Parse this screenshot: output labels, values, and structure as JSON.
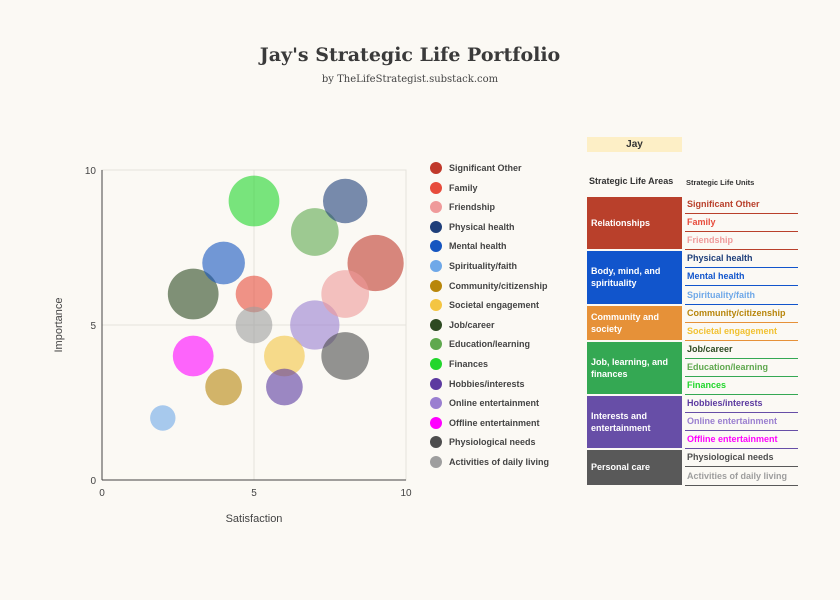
{
  "title": "Jay's Strategic Life Portfolio",
  "subtitle": "by TheLifeStrategist.substack.com",
  "chart_data": {
    "type": "scatter",
    "xlabel": "Satisfaction",
    "ylabel": "Importance",
    "xlim": [
      0,
      10
    ],
    "ylim": [
      0,
      10
    ],
    "xticks": [
      "0",
      "5",
      "10"
    ],
    "yticks": [
      "0",
      "5",
      "10"
    ],
    "grid": true,
    "legend_position": "right",
    "series": [
      {
        "name": "Significant Other",
        "color": "#c0392b",
        "x": 9,
        "y": 7,
        "size": 9
      },
      {
        "name": "Family",
        "color": "#e74c3c",
        "x": 5,
        "y": 6,
        "size": 3
      },
      {
        "name": "Friendship",
        "color": "#ef9a9a",
        "x": 8,
        "y": 6,
        "size": 6
      },
      {
        "name": "Physical health",
        "color": "#1f3f7a",
        "x": 8,
        "y": 9,
        "size": 5
      },
      {
        "name": "Mental health",
        "color": "#1555c0",
        "x": 4,
        "y": 7,
        "size": 4.5
      },
      {
        "name": "Spirituality/faith",
        "color": "#6fa8e8",
        "x": 2,
        "y": 2,
        "size": 1
      },
      {
        "name": "Community/citizenship",
        "color": "#b8860b",
        "x": 4,
        "y": 3,
        "size": 3
      },
      {
        "name": "Societal engagement",
        "color": "#f4c542",
        "x": 6,
        "y": 4,
        "size": 4
      },
      {
        "name": "Job/career",
        "color": "#2d4a22",
        "x": 3,
        "y": 6,
        "size": 7
      },
      {
        "name": "Education/learning",
        "color": "#5fa84e",
        "x": 7,
        "y": 8,
        "size": 6
      },
      {
        "name": "Finances",
        "color": "#22d62c",
        "x": 5,
        "y": 9,
        "size": 7
      },
      {
        "name": "Hobbies/interests",
        "color": "#5c3aa0",
        "x": 6,
        "y": 3,
        "size": 3
      },
      {
        "name": "Online entertainment",
        "color": "#9a7fd0",
        "x": 7,
        "y": 5,
        "size": 6.5
      },
      {
        "name": "Offline entertainment",
        "color": "#ff00ff",
        "x": 3,
        "y": 4,
        "size": 4
      },
      {
        "name": "Physiological needs",
        "color": "#4d4d4d",
        "x": 8,
        "y": 4,
        "size": 6
      },
      {
        "name": "Activities of daily living",
        "color": "#9e9e9e",
        "x": 5,
        "y": 5,
        "size": 3
      }
    ]
  },
  "table": {
    "person": "Jay",
    "areas_header": "Strategic Life Areas",
    "units_header": "Strategic Life Units",
    "areas": [
      {
        "label": "Relationships",
        "color": "#b9402b",
        "units": [
          {
            "label": "Significant Other",
            "color": "#b9402b"
          },
          {
            "label": "Family",
            "color": "#e74c3c"
          },
          {
            "label": "Friendship",
            "color": "#ef9a9a"
          }
        ]
      },
      {
        "label": "Body, mind, and spirituality",
        "color": "#1155cc",
        "units": [
          {
            "label": "Physical health",
            "color": "#1f3f7a"
          },
          {
            "label": "Mental health",
            "color": "#1155cc"
          },
          {
            "label": "Spirituality/faith",
            "color": "#6fa8e8"
          }
        ]
      },
      {
        "label": "Community and society",
        "color": "#e69138",
        "units": [
          {
            "label": "Community/citizenship",
            "color": "#b8860b"
          },
          {
            "label": "Societal engagement",
            "color": "#f1c232"
          }
        ]
      },
      {
        "label": "Job, learning, and finances",
        "color": "#34a853",
        "units": [
          {
            "label": "Job/career",
            "color": "#2d4a22"
          },
          {
            "label": "Education/learning",
            "color": "#5fa84e"
          },
          {
            "label": "Finances",
            "color": "#22d62c"
          }
        ]
      },
      {
        "label": "Interests and entertainment",
        "color": "#674ea7",
        "units": [
          {
            "label": "Hobbies/interests",
            "color": "#5c3aa0"
          },
          {
            "label": "Online entertainment",
            "color": "#9a7fd0"
          },
          {
            "label": "Offline entertainment",
            "color": "#ff00ff"
          }
        ]
      },
      {
        "label": "Personal care",
        "color": "#595959",
        "units": [
          {
            "label": "Physiological needs",
            "color": "#4d4d4d"
          },
          {
            "label": "Activities of daily living",
            "color": "#9e9e9e"
          }
        ]
      }
    ]
  }
}
